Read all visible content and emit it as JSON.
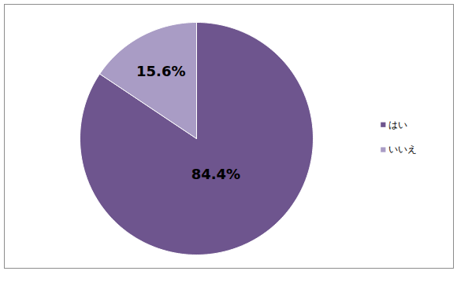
{
  "chart_data": {
    "type": "pie",
    "categories": [
      "はい",
      "いいえ"
    ],
    "values": [
      84.4,
      15.6
    ],
    "value_labels": [
      "84.4%",
      "15.6%"
    ],
    "colors": [
      "#6e558e",
      "#a99cc5"
    ],
    "data_labels": true,
    "legend": "right"
  }
}
